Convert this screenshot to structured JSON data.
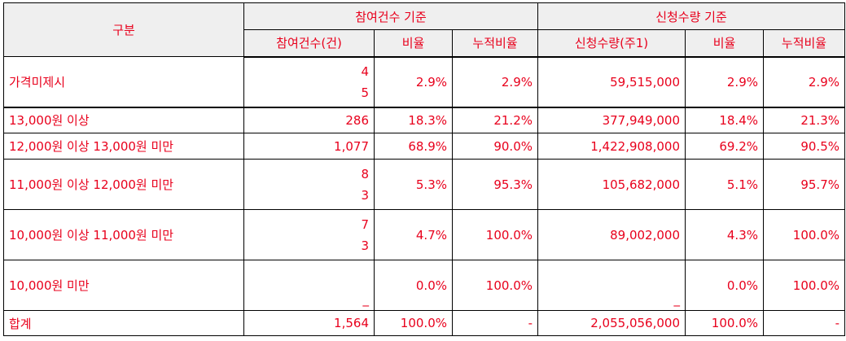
{
  "header": {
    "category": "구분",
    "group_participation": "참여건수 기준",
    "group_subscription": "신청수량 기준",
    "col_participation_count": "참여건수(건)",
    "col_ratio": "비율",
    "col_cumulative": "누적비율",
    "col_subscription_qty": "신청수량(주1)"
  },
  "rows": [
    {
      "label": "가격미제시",
      "count_line1": "4",
      "count_line2": "5",
      "ratio": "2.9%",
      "cum": "2.9%",
      "qty": "59,515,000",
      "qty_ratio": "2.9%",
      "qty_cum": "2.9%"
    },
    {
      "label": "13,000원 이상",
      "count": "286",
      "ratio": "18.3%",
      "cum": "21.2%",
      "qty": "377,949,000",
      "qty_ratio": "18.4%",
      "qty_cum": "21.3%"
    },
    {
      "label": "12,000원 이상 13,000원 미만",
      "count": "1,077",
      "ratio": "68.9%",
      "cum": "90.0%",
      "qty": "1,422,908,000",
      "qty_ratio": "69.2%",
      "qty_cum": "90.5%"
    },
    {
      "label": "11,000원 이상 12,000원 미만",
      "count_line1": "8",
      "count_line2": "3",
      "ratio": "5.3%",
      "cum": "95.3%",
      "qty": "105,682,000",
      "qty_ratio": "5.1%",
      "qty_cum": "95.7%"
    },
    {
      "label": "10,000원 이상 11,000원 미만",
      "count_line1": "7",
      "count_line2": "3",
      "ratio": "4.7%",
      "cum": "100.0%",
      "qty": "89,002,000",
      "qty_ratio": "4.3%",
      "qty_cum": "100.0%"
    },
    {
      "label": "10,000원 미만",
      "count": "_",
      "ratio": "0.0%",
      "cum": "100.0%",
      "qty": "_",
      "qty_ratio": "0.0%",
      "qty_cum": "100.0%"
    },
    {
      "label": "합계",
      "count": "1,564",
      "ratio": "100.0%",
      "cum": "-",
      "qty": "2,055,056,000",
      "qty_ratio": "100.0%",
      "qty_cum": "-"
    }
  ]
}
